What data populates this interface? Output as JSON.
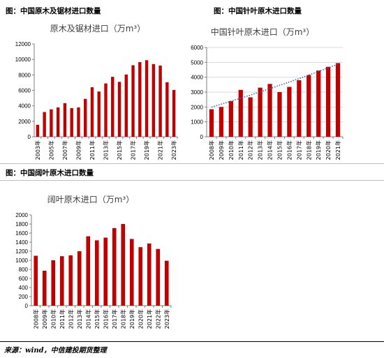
{
  "figures": {
    "fig1_label": "图：中国原木及锯材进口数量",
    "fig2_label": "图：中国针叶原木进口数量",
    "fig3_label": "图：中国阔叶原木进口数量"
  },
  "source": "来源：wind，中信建投期货整理",
  "colors": {
    "bar": "#c00000",
    "trend": "#2f6db5",
    "axis": "#7f7f7f",
    "grid": "#d9d9d9"
  },
  "chart_data": [
    {
      "type": "bar",
      "title": "原木及锯材进口（万m³）",
      "categories": [
        "2003年",
        "2004年",
        "2005年",
        "2006年",
        "2007年",
        "2008年",
        "2009年",
        "2010年",
        "2011年",
        "2012年",
        "2013年",
        "2014年",
        "2015年",
        "2016年",
        "2017年",
        "2018年",
        "2019年",
        "2020年",
        "2021年",
        "2022年",
        "2023年"
      ],
      "tick_labels": [
        "2003年",
        "",
        "2005年",
        "",
        "2007年",
        "",
        "2009年",
        "",
        "2011年",
        "",
        "2013年",
        "",
        "2015年",
        "",
        "2017年",
        "",
        "2019年",
        "",
        "2021年",
        "",
        "2023年"
      ],
      "values": [
        1550,
        3200,
        3550,
        3800,
        4350,
        3700,
        3800,
        4900,
        6400,
        5850,
        6900,
        7750,
        7100,
        8050,
        9250,
        9650,
        9900,
        9400,
        9200,
        7050,
        6050
      ],
      "ylim": [
        0,
        12000
      ],
      "yticks": [
        0,
        2000,
        4000,
        6000,
        8000,
        10000,
        12000
      ],
      "grid": false,
      "trendline": false
    },
    {
      "type": "bar",
      "title": "中国针叶原木进口（万m³）",
      "categories": [
        "2008年",
        "2009年",
        "2010年",
        "2011年",
        "2012年",
        "2013年",
        "2014年",
        "2015年",
        "2016年",
        "2017年",
        "2018年",
        "2019年",
        "2020年",
        "2021年"
      ],
      "tick_labels": [
        "2008年",
        "2009年",
        "2010年",
        "2011年",
        "2012年",
        "2013年",
        "2014年",
        "2015年",
        "2016年",
        "2017年",
        "2018年",
        "2019年",
        "2020年",
        "2021年"
      ],
      "values": [
        1850,
        2000,
        2400,
        3150,
        2650,
        3300,
        3550,
        3000,
        3350,
        3800,
        4150,
        4450,
        4700,
        4950
      ],
      "ylim": [
        0,
        6000
      ],
      "yticks": [
        0,
        1000,
        2000,
        3000,
        4000,
        5000,
        6000
      ],
      "grid": true,
      "trendline": true
    },
    {
      "type": "bar",
      "title": "阔叶原木进口（万m³）",
      "categories": [
        "2008年",
        "2009年",
        "2010年",
        "2011年",
        "2012年",
        "2013年",
        "2014年",
        "2015年",
        "2016年",
        "2017年",
        "2018年",
        "2019年",
        "2020年",
        "2021年",
        "2022年",
        "2023年"
      ],
      "tick_labels": [
        "2008年",
        "2009年",
        "2010年",
        "2011年",
        "2012年",
        "2013年",
        "2014年",
        "2015年",
        "2016年",
        "2017年",
        "2018年",
        "2019年",
        "2020年",
        "2021年",
        "2022年",
        "2023年"
      ],
      "values": [
        1100,
        770,
        1000,
        1090,
        1110,
        1200,
        1530,
        1440,
        1500,
        1710,
        1800,
        1470,
        1290,
        1370,
        1250,
        990
      ],
      "ylim": [
        0,
        2000
      ],
      "yticks": [
        0,
        200,
        400,
        600,
        800,
        1000,
        1200,
        1400,
        1600,
        1800,
        2000
      ],
      "grid": false,
      "trendline": false
    }
  ]
}
